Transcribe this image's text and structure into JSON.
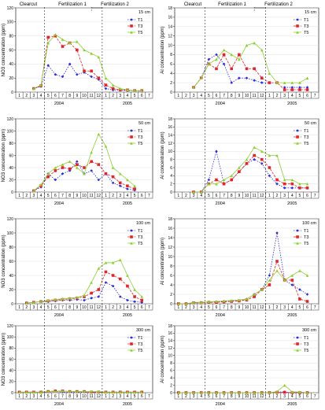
{
  "figure": {
    "phase_labels": [
      "Clearcut",
      "Fertilization 1",
      "Fertilization 2"
    ],
    "month_ticks": [
      "1",
      "2",
      "3",
      "4",
      "5",
      "6",
      "7",
      "8",
      "9",
      "10",
      "11",
      "12",
      "1",
      "2",
      "3",
      "4",
      "5",
      "6",
      "7"
    ],
    "year_labels": [
      "2004",
      "2005"
    ],
    "series_names": [
      "T1",
      "T3",
      "T5"
    ],
    "series_colors": [
      "#2b2bd9",
      "#e0242a",
      "#8ccf2f"
    ]
  },
  "chart_data": [
    {
      "type": "line",
      "depth_label": "15 cm",
      "ylabel": "NO3 concentration (ppm)",
      "ylim": [
        0,
        120
      ],
      "yticks": [
        0,
        20,
        40,
        60,
        80,
        100,
        120
      ],
      "legend_position": "top-right",
      "x_categories": [
        "1",
        "2",
        "3",
        "4",
        "5",
        "6",
        "7",
        "8",
        "9",
        "10",
        "11",
        "12",
        "1",
        "2",
        "3",
        "4",
        "5",
        "6",
        "7"
      ],
      "series": [
        {
          "name": "T1",
          "values": [
            null,
            null,
            5,
            8,
            38,
            25,
            22,
            40,
            25,
            28,
            22,
            18,
            5,
            3,
            3,
            2,
            2,
            1,
            null
          ]
        },
        {
          "name": "T3",
          "values": [
            null,
            null,
            5,
            9,
            78,
            80,
            65,
            70,
            60,
            30,
            30,
            20,
            10,
            5,
            3,
            3,
            2,
            2,
            null
          ]
        },
        {
          "name": "T5",
          "values": [
            null,
            null,
            5,
            10,
            70,
            82,
            75,
            70,
            72,
            60,
            55,
            50,
            20,
            10,
            5,
            3,
            2,
            2,
            null
          ]
        }
      ]
    },
    {
      "type": "line",
      "depth_label": "15 cm",
      "ylabel": "Al concentration (ppm)",
      "ylim": [
        0,
        18
      ],
      "yticks": [
        0,
        2,
        4,
        6,
        8,
        10,
        12,
        14,
        16,
        18
      ],
      "legend_position": "top-right",
      "x_categories": [
        "1",
        "2",
        "3",
        "4",
        "5",
        "6",
        "7",
        "8",
        "9",
        "10",
        "11",
        "12",
        "1",
        "2",
        "3",
        "4",
        "5",
        "6",
        "7"
      ],
      "series": [
        {
          "name": "T1",
          "values": [
            null,
            null,
            1,
            3,
            7,
            8,
            6,
            2,
            3,
            3,
            2.5,
            2,
            2,
            null,
            1,
            1,
            1,
            1,
            null
          ]
        },
        {
          "name": "T3",
          "values": [
            null,
            null,
            1,
            3,
            6,
            5,
            8,
            5,
            8,
            5,
            5,
            3,
            2,
            2,
            0.5,
            0.5,
            0.5,
            0.5,
            null
          ]
        },
        {
          "name": "T5",
          "values": [
            null,
            null,
            1,
            3,
            6,
            7,
            9,
            8,
            7,
            10,
            10.5,
            9,
            4,
            2,
            2,
            2,
            2,
            3,
            null
          ]
        }
      ]
    },
    {
      "type": "line",
      "depth_label": "50 cm",
      "ylabel": "NO3 concentration (ppm)",
      "ylim": [
        0,
        120
      ],
      "yticks": [
        0,
        20,
        40,
        60,
        80,
        100,
        120
      ],
      "legend_position": "top-right",
      "x_categories": [
        "1",
        "2",
        "3",
        "4",
        "5",
        "6",
        "7",
        "8",
        "9",
        "10",
        "11",
        "12",
        "1",
        "2",
        "3",
        "4",
        "5",
        "6",
        "7"
      ],
      "series": [
        {
          "name": "T1",
          "values": [
            null,
            null,
            2,
            8,
            30,
            20,
            30,
            35,
            50,
            30,
            35,
            20,
            30,
            15,
            10,
            5,
            3,
            null,
            null
          ]
        },
        {
          "name": "T3",
          "values": [
            null,
            null,
            2,
            10,
            25,
            35,
            40,
            38,
            45,
            40,
            50,
            45,
            30,
            25,
            15,
            10,
            5,
            null,
            null
          ]
        },
        {
          "name": "T5",
          "values": [
            null,
            null,
            2,
            12,
            30,
            40,
            45,
            50,
            40,
            30,
            65,
            95,
            75,
            40,
            30,
            20,
            10,
            null,
            null
          ]
        }
      ]
    },
    {
      "type": "line",
      "depth_label": "50 cm",
      "ylabel": "Al concentration (ppm)",
      "ylim": [
        0,
        18
      ],
      "yticks": [
        0,
        2,
        4,
        6,
        8,
        10,
        12,
        14,
        16,
        18
      ],
      "legend_position": "top-right",
      "x_categories": [
        "1",
        "2",
        "3",
        "4",
        "5",
        "6",
        "7",
        "8",
        "9",
        "10",
        "11",
        "12",
        "1",
        "2",
        "3",
        "4",
        "5",
        "6",
        "7"
      ],
      "series": [
        {
          "name": "T1",
          "values": [
            null,
            null,
            0,
            0,
            3,
            10,
            2,
            3,
            5,
            7,
            8,
            7,
            4,
            2,
            1,
            1,
            1,
            1,
            null
          ]
        },
        {
          "name": "T3",
          "values": [
            null,
            null,
            0,
            0,
            2,
            3,
            2,
            3,
            5,
            7,
            9,
            8,
            6,
            3,
            2,
            2,
            1,
            1,
            null
          ]
        },
        {
          "name": "T5",
          "values": [
            null,
            null,
            0,
            0,
            2,
            2,
            3,
            4,
            6,
            8,
            11,
            10,
            9,
            9,
            3,
            3,
            2,
            2,
            null
          ]
        }
      ]
    },
    {
      "type": "line",
      "depth_label": "100 cm",
      "ylabel": "NO3 concentration (ppm)",
      "ylim": [
        0,
        120
      ],
      "yticks": [
        0,
        20,
        40,
        60,
        80,
        100,
        120
      ],
      "legend_position": "top-right",
      "x_categories": [
        "1",
        "2",
        "3",
        "4",
        "5",
        "6",
        "7",
        "8",
        "9",
        "10",
        "11",
        "12",
        "1",
        "2",
        "3",
        "4",
        "5",
        "6",
        "7"
      ],
      "series": [
        {
          "name": "T1",
          "values": [
            null,
            1,
            2,
            3,
            3,
            4,
            5,
            5,
            6,
            5,
            8,
            10,
            30,
            25,
            10,
            5,
            3,
            2,
            null
          ]
        },
        {
          "name": "T3",
          "values": [
            null,
            1,
            2,
            3,
            4,
            5,
            6,
            7,
            8,
            10,
            15,
            20,
            45,
            40,
            35,
            25,
            10,
            5,
            null
          ]
        },
        {
          "name": "T5",
          "values": [
            null,
            1,
            2,
            3,
            5,
            6,
            7,
            8,
            9,
            12,
            30,
            50,
            58,
            58,
            62,
            40,
            20,
            10,
            null
          ]
        }
      ]
    },
    {
      "type": "line",
      "depth_label": "100 cm",
      "ylabel": "Al concentration (ppm)",
      "ylim": [
        0,
        18
      ],
      "yticks": [
        0,
        2,
        4,
        6,
        8,
        10,
        12,
        14,
        16,
        18
      ],
      "legend_position": "top-right",
      "x_categories": [
        "1",
        "2",
        "3",
        "4",
        "5",
        "6",
        "7",
        "8",
        "9",
        "10",
        "11",
        "12",
        "1",
        "2",
        "3",
        "4",
        "5",
        "6",
        "7"
      ],
      "series": [
        {
          "name": "T1",
          "values": [
            0,
            0,
            0.2,
            0.3,
            0.3,
            0.4,
            0.5,
            0.6,
            0.7,
            1,
            2,
            3,
            6,
            15,
            5,
            4,
            3,
            2,
            null
          ]
        },
        {
          "name": "T3",
          "values": [
            0,
            0,
            0.2,
            0.2,
            0.3,
            0.3,
            0.4,
            0.5,
            0.6,
            0.8,
            1.5,
            3,
            4,
            9,
            5,
            5,
            1,
            0.5,
            null
          ]
        },
        {
          "name": "T5",
          "values": [
            0,
            0,
            0.3,
            0.3,
            0.4,
            0.5,
            0.6,
            0.7,
            0.8,
            1,
            2,
            3,
            5,
            7,
            5,
            6,
            7,
            6,
            null
          ]
        }
      ]
    },
    {
      "type": "line",
      "depth_label": "300 cm",
      "ylabel": "NO3 concentration (ppm)",
      "ylim": [
        0,
        120
      ],
      "yticks": [
        0,
        20,
        40,
        60,
        80,
        100,
        120
      ],
      "legend_position": "top-right",
      "x_categories": [
        "1",
        "2",
        "3",
        "4",
        "5",
        "6",
        "7",
        "8",
        "9",
        "10",
        "11",
        "12",
        "1",
        "2",
        "3",
        "4",
        "5",
        "6",
        "7"
      ],
      "series": [
        {
          "name": "T1",
          "values": [
            1,
            1,
            1,
            1,
            1,
            2,
            1,
            1,
            1,
            1,
            1,
            1,
            1,
            1,
            1,
            1,
            1,
            1,
            null
          ]
        },
        {
          "name": "T3",
          "values": [
            1,
            1,
            1,
            1,
            2,
            3,
            3,
            2,
            2,
            2,
            1,
            1,
            1,
            1,
            1,
            1,
            1,
            1,
            null
          ]
        },
        {
          "name": "T5",
          "values": [
            1,
            1,
            1,
            1,
            2,
            2,
            3,
            2,
            2,
            2,
            2,
            2,
            1,
            1,
            1,
            1,
            1,
            1,
            null
          ]
        }
      ]
    },
    {
      "type": "line",
      "depth_label": "300 cm",
      "ylabel": "Al concentration (ppm)",
      "ylim": [
        0,
        18
      ],
      "yticks": [
        0,
        2,
        4,
        6,
        8,
        10,
        12,
        14,
        16,
        18
      ],
      "legend_position": "top-right",
      "x_categories": [
        "1",
        "2",
        "3",
        "4",
        "5",
        "6",
        "7",
        "8",
        "9",
        "10",
        "11",
        "12",
        "1",
        "2",
        "3",
        "4",
        "5",
        "6",
        "7"
      ],
      "series": [
        {
          "name": "T1",
          "values": [
            0,
            0,
            0,
            0,
            0,
            0,
            0,
            0,
            0,
            0,
            0,
            0,
            0,
            0.2,
            0.2,
            0,
            0,
            0,
            null
          ]
        },
        {
          "name": "T3",
          "values": [
            0,
            0,
            0,
            0,
            0,
            0,
            0,
            0,
            0,
            0,
            0,
            0,
            0,
            0.1,
            0.1,
            0,
            0,
            0,
            null
          ]
        },
        {
          "name": "T5",
          "values": [
            0,
            0,
            0,
            0,
            0,
            0,
            0,
            0,
            0,
            0,
            0,
            0,
            0,
            0.3,
            2,
            0.2,
            0.2,
            0,
            null
          ]
        }
      ]
    }
  ]
}
